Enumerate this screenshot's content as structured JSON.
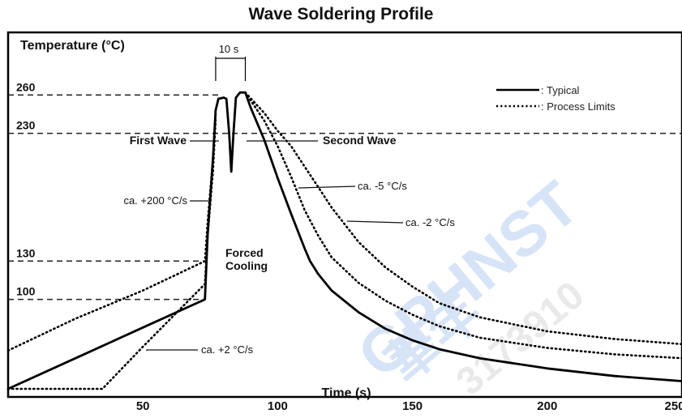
{
  "chart_data": {
    "type": "line",
    "title": "Wave Soldering Profile",
    "xlabel": "Time (s)",
    "ylabel": "Temperature (°C)",
    "xlim": [
      0,
      250
    ],
    "ylim": [
      30,
      290
    ],
    "x_ticks": [
      50,
      100,
      150,
      200,
      250
    ],
    "y_ticks": [
      100,
      130,
      230,
      260
    ],
    "legend": {
      "position": "top-right",
      "entries": [
        {
          "label": ": Typical",
          "style": "solid"
        },
        {
          "label": ": Process Limits",
          "style": "dotted"
        }
      ]
    },
    "series": [
      {
        "name": "Typical",
        "style": "solid",
        "points": [
          [
            0,
            30
          ],
          [
            25,
            54
          ],
          [
            50,
            78
          ],
          [
            73,
            100
          ],
          [
            74,
            150
          ],
          [
            76,
            210
          ],
          [
            77,
            248
          ],
          [
            78,
            257
          ],
          [
            80,
            258
          ],
          [
            81,
            257
          ],
          [
            82,
            230
          ],
          [
            82.8,
            200
          ],
          [
            83.6,
            230
          ],
          [
            84.5,
            258
          ],
          [
            86,
            262
          ],
          [
            88,
            262
          ],
          [
            90,
            250
          ],
          [
            95,
            225
          ],
          [
            100,
            195
          ],
          [
            105,
            167
          ],
          [
            110,
            140
          ],
          [
            112,
            130
          ],
          [
            115,
            120
          ],
          [
            120,
            107
          ],
          [
            130,
            90
          ],
          [
            140,
            77
          ],
          [
            150,
            68
          ],
          [
            160,
            61
          ],
          [
            175,
            54
          ],
          [
            200,
            46
          ],
          [
            225,
            40
          ],
          [
            250,
            36
          ]
        ]
      },
      {
        "name": "Process Limits (lower)",
        "style": "dotted",
        "points": [
          [
            0,
            30
          ],
          [
            35,
            30
          ],
          [
            50,
            63
          ],
          [
            65,
            95
          ],
          [
            73,
            112
          ],
          [
            74,
            150
          ],
          [
            76,
            200
          ],
          [
            77,
            240
          ]
        ]
      },
      {
        "name": "Process Limits (upper)",
        "style": "dotted",
        "points": [
          [
            0,
            60
          ],
          [
            25,
            85
          ],
          [
            50,
            107
          ],
          [
            73,
            130
          ],
          [
            74,
            160
          ],
          [
            76,
            210
          ],
          [
            77,
            245
          ]
        ]
      },
      {
        "name": "Process Limits (-5 °C/s)",
        "style": "dotted",
        "points": [
          [
            88,
            262
          ],
          [
            95,
            240
          ],
          [
            100,
            220
          ],
          [
            105,
            196
          ],
          [
            110,
            170
          ],
          [
            115,
            150
          ],
          [
            120,
            133
          ],
          [
            130,
            113
          ],
          [
            140,
            99
          ],
          [
            150,
            88
          ],
          [
            160,
            79
          ],
          [
            175,
            70
          ],
          [
            200,
            62
          ],
          [
            225,
            57
          ],
          [
            250,
            54
          ]
        ]
      },
      {
        "name": "Process Limits (-2 °C/s)",
        "style": "dotted",
        "points": [
          [
            88,
            262
          ],
          [
            95,
            246
          ],
          [
            100,
            232
          ],
          [
            105,
            220
          ],
          [
            110,
            204
          ],
          [
            115,
            188
          ],
          [
            120,
            172
          ],
          [
            130,
            145
          ],
          [
            140,
            125
          ],
          [
            150,
            110
          ],
          [
            160,
            97
          ],
          [
            175,
            86
          ],
          [
            200,
            75
          ],
          [
            225,
            69
          ],
          [
            250,
            65
          ]
        ]
      }
    ],
    "annotations": {
      "ten_s": "10 s",
      "first_wave": "First Wave",
      "second_wave": "Second Wave",
      "ramp_up": "ca. +200 °C/s",
      "preheat": "ca. +2 °C/s",
      "cool_5": "ca. -5 °C/s",
      "cool_2": "ca. -2 °C/s",
      "forced_cooling": [
        "Forced",
        "Cooling"
      ]
    },
    "grid": false
  },
  "watermark": {
    "logo_text": "GPHNST",
    "cn_text": "華年",
    "number_text": "3173910"
  }
}
